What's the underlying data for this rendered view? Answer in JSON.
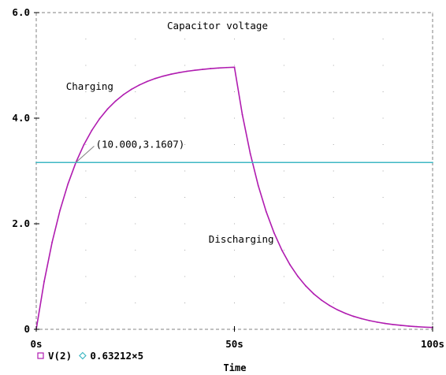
{
  "chart_data": {
    "type": "line",
    "title": "Capacitor voltage",
    "xlabel": "Time",
    "ylabel": "",
    "xlim": [
      0,
      100
    ],
    "ylim": [
      0,
      6
    ],
    "x_tick_values": [
      0,
      50,
      100
    ],
    "x_tick_labels": [
      "0s",
      "50s",
      "100s"
    ],
    "y_tick_values": [
      0,
      2,
      4,
      6
    ],
    "y_tick_labels": [
      "0",
      "2.0",
      "4.0",
      "6.0"
    ],
    "grid": "dotted",
    "legend_position": "bottom-left",
    "series": [
      {
        "name": "V(2)",
        "color": "#b01cb0",
        "marker": "square",
        "x": [
          0,
          2,
          4,
          6,
          8,
          10,
          12,
          14,
          16,
          18,
          20,
          22,
          24,
          26,
          28,
          30,
          32,
          34,
          36,
          38,
          40,
          42,
          44,
          46,
          48,
          50,
          52,
          54,
          56,
          58,
          60,
          62,
          64,
          66,
          68,
          70,
          72,
          74,
          76,
          78,
          80,
          82,
          84,
          86,
          88,
          90,
          92,
          94,
          96,
          98,
          100
        ],
        "y": [
          0,
          0.906,
          1.648,
          2.256,
          2.753,
          3.161,
          3.494,
          3.767,
          3.991,
          4.174,
          4.323,
          4.446,
          4.546,
          4.628,
          4.696,
          4.751,
          4.796,
          4.833,
          4.863,
          4.888,
          4.908,
          4.925,
          4.939,
          4.95,
          4.959,
          4.966,
          4.066,
          3.329,
          2.726,
          2.232,
          1.827,
          1.496,
          1.225,
          1.003,
          0.821,
          0.672,
          0.55,
          0.451,
          0.369,
          0.302,
          0.247,
          0.203,
          0.166,
          0.136,
          0.111,
          0.091,
          0.075,
          0.061,
          0.05,
          0.041,
          0.034
        ]
      },
      {
        "name": "0.63212×5",
        "color": "#3fb8c4",
        "marker": "diamond",
        "x": [
          0,
          100
        ],
        "y": [
          3.1606,
          3.1606
        ]
      }
    ],
    "annotations": [
      {
        "text": "Charging",
        "x": 7.5,
        "y": 4.6
      },
      {
        "text": "Discharging",
        "x": 43.5,
        "y": 1.7
      },
      {
        "text": "(10.000,3.1607)",
        "x": 15,
        "y": 3.5,
        "point_x": 10.0,
        "point_y": 3.1607
      }
    ]
  }
}
